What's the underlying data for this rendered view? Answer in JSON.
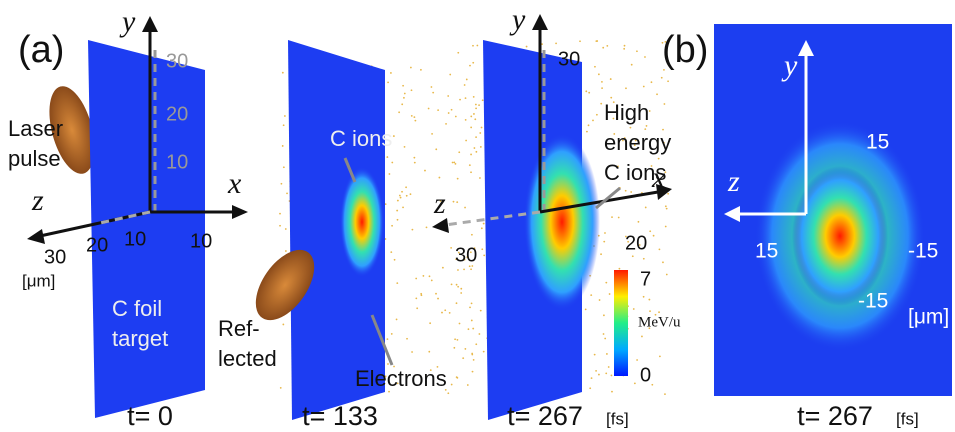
{
  "panel_a": {
    "label": "(a)",
    "frame_0": {
      "time": "t= 0",
      "y_axis": "y",
      "x_axis": "x",
      "z_axis": "z",
      "y_ticks": [
        "30",
        "20",
        "10"
      ],
      "x_ticks": [
        "10"
      ],
      "z_ticks": [
        "30",
        "20",
        "10"
      ],
      "unit": "[μm]",
      "laser": [
        "Laser",
        "pulse"
      ],
      "target": [
        "C foil",
        "target"
      ]
    },
    "frame_1": {
      "time": "t= 133",
      "ions": "C ions",
      "reflected": [
        "Ref-",
        "lected"
      ],
      "electrons": "Electrons"
    },
    "frame_2": {
      "time": "t= 267",
      "time_unit": "[fs]",
      "y_axis": "y",
      "x_axis": "x",
      "z_axis": "z",
      "y_ticks": [
        "30"
      ],
      "z_ticks": [
        "30"
      ],
      "x_ticks": [
        "20"
      ],
      "high_energy": [
        "High",
        "energy",
        "C ions"
      ],
      "colorbar": {
        "max": "7",
        "unit": "MeV/u",
        "min": "0"
      }
    }
  },
  "panel_b": {
    "label": "(b)",
    "y_axis": "y",
    "z_axis": "z",
    "ticks": [
      "15",
      "15",
      "-15",
      "-15"
    ],
    "unit": "[μm]",
    "time": "t= 267",
    "time_unit": "[fs]"
  }
}
